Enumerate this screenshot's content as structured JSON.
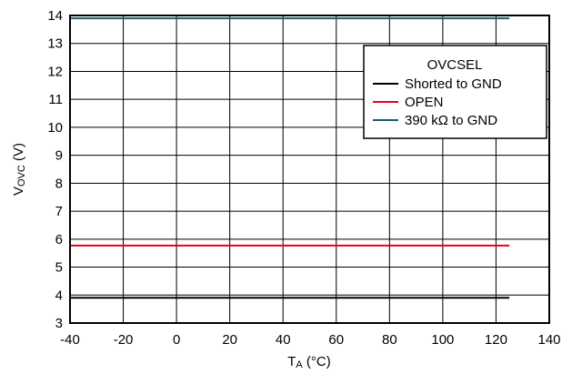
{
  "chart_data": {
    "type": "line",
    "xlim": [
      -40,
      140
    ],
    "ylim": [
      3,
      14
    ],
    "x_ticks": [
      "-40",
      "-20",
      "0",
      "20",
      "40",
      "60",
      "80",
      "100",
      "120",
      "140"
    ],
    "y_ticks": [
      "3",
      "4",
      "5",
      "6",
      "7",
      "8",
      "9",
      "10",
      "11",
      "12",
      "13",
      "14"
    ],
    "grid": true,
    "xlabel": {
      "main": "T",
      "sub": "A",
      "unit": " (°C)"
    },
    "ylabel": {
      "main": "V",
      "sub": "OVC",
      "unit": " (V)"
    },
    "legend": {
      "title": "OVCSEL",
      "placement": "top-right"
    },
    "series": [
      {
        "name": "Shorted to GND",
        "color": "#000000",
        "x": [
          -40,
          125
        ],
        "y": [
          3.9,
          3.9
        ]
      },
      {
        "name": "OPEN",
        "color": "#e8001c",
        "x": [
          -40,
          125
        ],
        "y": [
          5.77,
          5.77
        ]
      },
      {
        "name": "390 kΩ to GND",
        "color": "#1b5e6e",
        "x": [
          -40,
          125
        ],
        "y": [
          13.9,
          13.9
        ]
      }
    ]
  }
}
